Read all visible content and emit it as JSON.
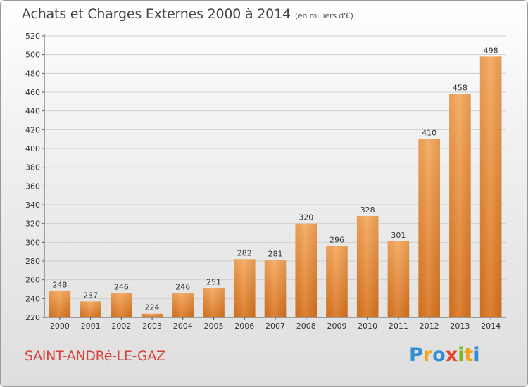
{
  "title": "Achats et Charges Externes 2000 à 2014",
  "title_unit": "(en milliers d'€)",
  "commune": "SAINT-ANDRé-LE-GAZ",
  "logo": {
    "letters": [
      "P",
      "r",
      "o",
      "x",
      "i",
      "t",
      "i"
    ],
    "colors": [
      "#2f8fd1",
      "#f0a21c",
      "#2f8fd1",
      "#e2462b",
      "#7ab82a",
      "#f0a21c",
      "#2f8fd1"
    ]
  },
  "colors": {
    "bar_light": "#f6a75a",
    "bar_dark": "#d9741f",
    "axis": "#555555",
    "grid": "#cfcfcf"
  },
  "chart_data": {
    "type": "bar",
    "title": "Achats et Charges Externes 2000 à 2014",
    "xlabel": "",
    "ylabel": "",
    "ylim": [
      220,
      520
    ],
    "ytick_step": 20,
    "grid": true,
    "categories": [
      "2000",
      "2001",
      "2002",
      "2003",
      "2004",
      "2005",
      "2006",
      "2007",
      "2008",
      "2009",
      "2010",
      "2011",
      "2012",
      "2013",
      "2014"
    ],
    "values": [
      248,
      237,
      246,
      224,
      246,
      251,
      282,
      281,
      320,
      296,
      328,
      301,
      410,
      458,
      498
    ]
  }
}
